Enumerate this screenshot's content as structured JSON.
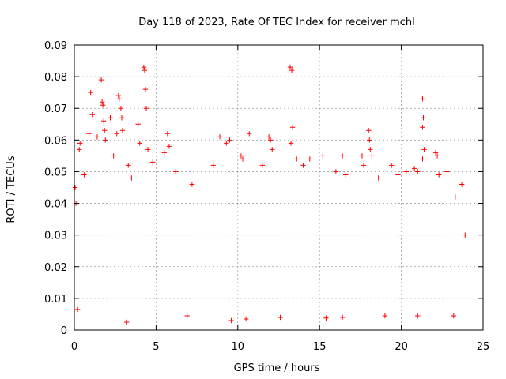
{
  "chart_data": {
    "type": "scatter",
    "title": "Day 118 of 2023, Rate Of TEC Index for receiver mchl",
    "xlabel": "GPS time / hours",
    "ylabel": "ROTI / TECUs",
    "xlim": [
      0,
      25
    ],
    "ylim": [
      0,
      0.09
    ],
    "xticks": [
      0,
      5,
      10,
      15,
      20,
      25
    ],
    "yticks": [
      0,
      0.01,
      0.02,
      0.03,
      0.04,
      0.05,
      0.06,
      0.07,
      0.08,
      0.09
    ],
    "xtick_labels": [
      "0",
      "5",
      "10",
      "15",
      "20",
      "25"
    ],
    "ytick_labels": [
      "0",
      "0.01",
      "0.02",
      "0.03",
      "0.04",
      "0.05",
      "0.06",
      "0.07",
      "0.08",
      "0.09"
    ],
    "grid": true,
    "marker": "+",
    "color": "#ff0000",
    "series": [
      {
        "points": [
          [
            0.05,
            0.045
          ],
          [
            0.1,
            0.04
          ],
          [
            0.3,
            0.057
          ],
          [
            0.35,
            0.059
          ],
          [
            0.6,
            0.049
          ],
          [
            0.9,
            0.062
          ],
          [
            1.0,
            0.075
          ],
          [
            1.1,
            0.068
          ],
          [
            1.4,
            0.061
          ],
          [
            1.65,
            0.079
          ],
          [
            1.7,
            0.072
          ],
          [
            1.75,
            0.071
          ],
          [
            1.8,
            0.066
          ],
          [
            1.85,
            0.063
          ],
          [
            1.9,
            0.06
          ],
          [
            2.2,
            0.067
          ],
          [
            2.4,
            0.055
          ],
          [
            2.6,
            0.062
          ],
          [
            2.7,
            0.074
          ],
          [
            2.75,
            0.073
          ],
          [
            2.85,
            0.07
          ],
          [
            2.9,
            0.067
          ],
          [
            2.95,
            0.063
          ],
          [
            3.3,
            0.052
          ],
          [
            3.5,
            0.048
          ],
          [
            3.9,
            0.065
          ],
          [
            4.0,
            0.059
          ],
          [
            4.25,
            0.083
          ],
          [
            4.3,
            0.082
          ],
          [
            4.35,
            0.076
          ],
          [
            4.4,
            0.07
          ],
          [
            4.5,
            0.057
          ],
          [
            4.8,
            0.053
          ],
          [
            5.5,
            0.056
          ],
          [
            5.7,
            0.062
          ],
          [
            5.8,
            0.058
          ],
          [
            6.2,
            0.05
          ],
          [
            7.2,
            0.046
          ],
          [
            8.5,
            0.052
          ],
          [
            8.9,
            0.061
          ],
          [
            9.3,
            0.059
          ],
          [
            9.5,
            0.06
          ],
          [
            10.2,
            0.055
          ],
          [
            10.3,
            0.054
          ],
          [
            10.7,
            0.062
          ],
          [
            11.5,
            0.052
          ],
          [
            11.9,
            0.061
          ],
          [
            12.0,
            0.06
          ],
          [
            12.1,
            0.057
          ],
          [
            13.2,
            0.083
          ],
          [
            13.3,
            0.082
          ],
          [
            13.35,
            0.064
          ],
          [
            13.25,
            0.059
          ],
          [
            13.6,
            0.054
          ],
          [
            14.0,
            0.052
          ],
          [
            14.4,
            0.054
          ],
          [
            15.2,
            0.055
          ],
          [
            16.0,
            0.05
          ],
          [
            16.4,
            0.055
          ],
          [
            16.6,
            0.049
          ],
          [
            17.6,
            0.055
          ],
          [
            17.7,
            0.052
          ],
          [
            18.0,
            0.063
          ],
          [
            18.05,
            0.06
          ],
          [
            18.1,
            0.057
          ],
          [
            18.2,
            0.055
          ],
          [
            18.6,
            0.048
          ],
          [
            19.4,
            0.052
          ],
          [
            19.8,
            0.049
          ],
          [
            20.3,
            0.05
          ],
          [
            20.8,
            0.051
          ],
          [
            21.0,
            0.05
          ],
          [
            21.3,
            0.073
          ],
          [
            21.35,
            0.067
          ],
          [
            21.3,
            0.064
          ],
          [
            21.4,
            0.057
          ],
          [
            21.3,
            0.054
          ],
          [
            22.1,
            0.056
          ],
          [
            22.2,
            0.055
          ],
          [
            22.3,
            0.049
          ],
          [
            22.8,
            0.05
          ],
          [
            23.3,
            0.042
          ],
          [
            23.7,
            0.046
          ],
          [
            23.9,
            0.03
          ],
          [
            0.2,
            0.0065
          ],
          [
            3.2,
            0.0025
          ],
          [
            6.9,
            0.0045
          ],
          [
            9.6,
            0.003
          ],
          [
            10.5,
            0.0035
          ],
          [
            12.6,
            0.004
          ],
          [
            15.4,
            0.0038
          ],
          [
            16.4,
            0.004
          ],
          [
            19.0,
            0.0045
          ],
          [
            21.0,
            0.0045
          ],
          [
            23.2,
            0.0045
          ]
        ]
      }
    ]
  }
}
